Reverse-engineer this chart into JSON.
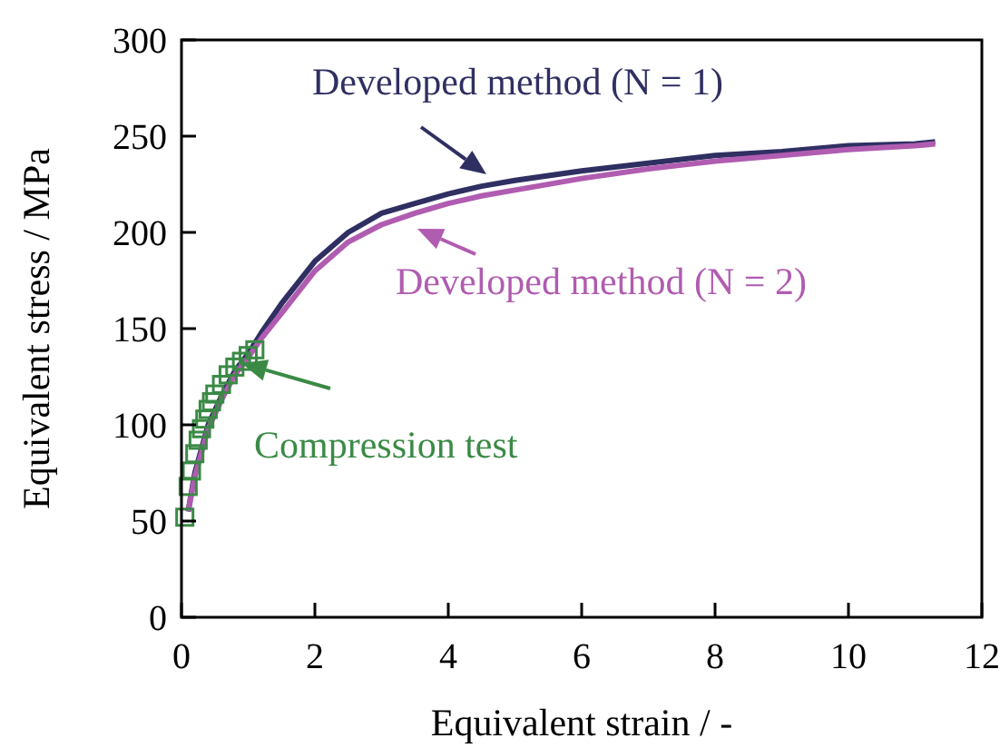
{
  "chart_data": {
    "type": "line",
    "xlabel": "Equivalent strain / -",
    "ylabel": "Equivalent stress / MPa",
    "xlim": [
      0,
      12
    ],
    "ylim": [
      0,
      300
    ],
    "xticks": [
      0,
      2,
      4,
      6,
      8,
      10,
      12
    ],
    "yticks": [
      0,
      50,
      100,
      150,
      200,
      250,
      300
    ],
    "grid": false,
    "legend": "bottom left",
    "series": [
      {
        "name": "Developed method (N = 1)",
        "color": "#2f2f62",
        "marker": "none",
        "x": [
          0.1,
          0.2,
          0.4,
          0.6,
          0.8,
          1.0,
          1.2,
          1.5,
          2,
          2.5,
          3,
          3.5,
          4,
          4.5,
          5,
          6,
          7,
          8,
          9,
          10,
          11,
          11.3
        ],
        "values": [
          55,
          75,
          100,
          115,
          128,
          137,
          148,
          163,
          185,
          200,
          210,
          215,
          220,
          224,
          227,
          232,
          236,
          240,
          242,
          245,
          246,
          247
        ]
      },
      {
        "name": "Developed method (N = 2)",
        "color": "#b05cb0",
        "marker": "none",
        "x": [
          0.1,
          0.2,
          0.4,
          0.6,
          0.8,
          1.0,
          1.2,
          1.5,
          2,
          2.5,
          3,
          3.5,
          4,
          4.5,
          5,
          6,
          7,
          8,
          9,
          10,
          11,
          11.3
        ],
        "values": [
          55,
          73,
          98,
          113,
          126,
          135,
          145,
          158,
          180,
          195,
          204,
          210,
          215,
          219,
          222,
          228,
          233,
          237,
          240,
          243,
          245,
          246
        ]
      },
      {
        "name": "Compression test",
        "color": "#3a8a45",
        "type": "scatter",
        "marker": "square",
        "x": [
          0.05,
          0.1,
          0.15,
          0.2,
          0.25,
          0.3,
          0.35,
          0.4,
          0.45,
          0.5,
          0.6,
          0.7,
          0.8,
          0.9,
          1.0,
          1.1
        ],
        "values": [
          52,
          68,
          76,
          85,
          92,
          98,
          103,
          108,
          112,
          116,
          121,
          126,
          130,
          133,
          136,
          139
        ]
      }
    ]
  }
}
